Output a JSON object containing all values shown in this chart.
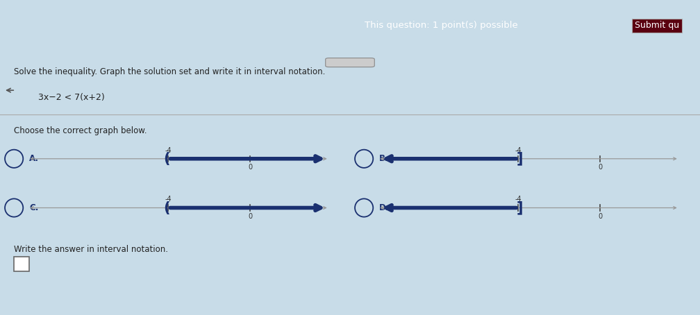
{
  "title_top": "This question: 1 point(s) possible",
  "header_bg": "#7a1020",
  "problem_text": "Solve the inequality. Graph the solution set and write it in interval notation.",
  "inequality": "3x−2 < 7(x+2)",
  "choose_text": "Choose the correct graph below.",
  "write_text": "Write the answer in interval notation.",
  "bg_color": "#c8dce8",
  "content_bg": "#dce8f0",
  "line_color": "#999999",
  "arrow_color": "#1a3070",
  "label_color": "#1a3070",
  "radio_color": "#1a3070",
  "graphs": [
    {
      "label": "A.",
      "point": -4,
      "open": true,
      "direction": "right"
    },
    {
      "label": "B.",
      "point": -4,
      "open": false,
      "direction": "left"
    },
    {
      "label": "C.",
      "point": -4,
      "open": true,
      "direction": "right"
    },
    {
      "label": "D.",
      "point": -4,
      "open": false,
      "direction": "left"
    }
  ]
}
